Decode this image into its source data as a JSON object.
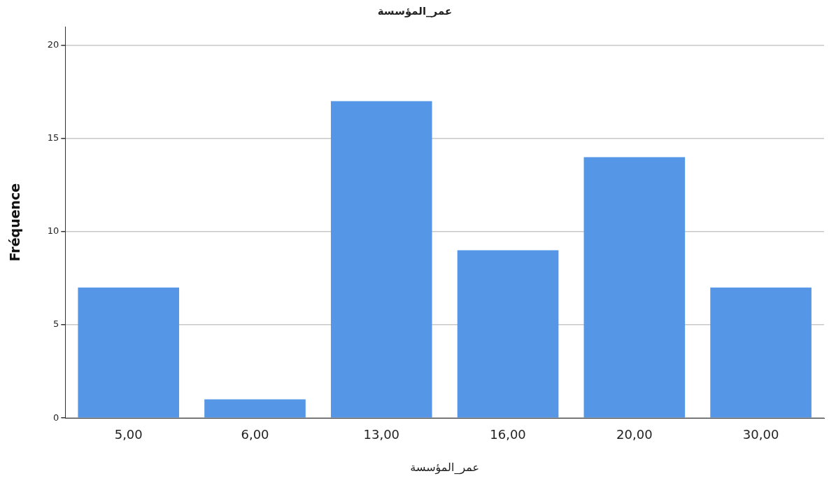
{
  "chart_data": {
    "type": "bar",
    "title": "عمر_المؤسسة",
    "xlabel": "عمر_المؤسسة",
    "ylabel": "Fréquence",
    "categories": [
      "5,00",
      "6,00",
      "13,00",
      "16,00",
      "20,00",
      "30,00"
    ],
    "values": [
      7,
      1,
      17,
      9,
      14,
      7
    ],
    "color": "#5596e6",
    "ylim": [
      0,
      21
    ],
    "yticks": [
      0,
      5,
      10,
      15,
      20
    ],
    "grid": "y",
    "legend": false
  }
}
